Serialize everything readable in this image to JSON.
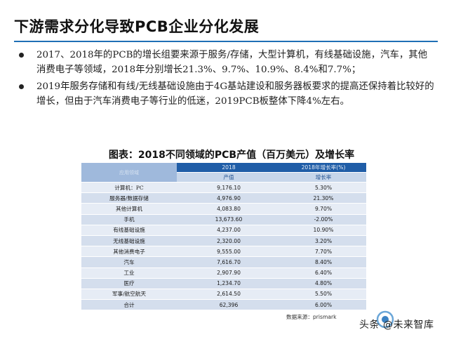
{
  "title": "下游需求分化导致PCB企业分化发展",
  "bullets": [
    "2017、2018年的PCB的增长组要来源于服务/存储，大型计算机，有线基础设施，汽车，其他消费电子等领域，2018年分别增长21.3%、9.7%、10.9%、8.4%和7.7%；",
    "2019年服务存储和有线/无线基础设施由于4G基站建设和服务器板要求的提高还保持着比较好的增长，但由于汽车消费电子等行业的低迷，2019PCB板整体下降4%左右。"
  ],
  "table": {
    "caption": "图表：2018不同领域的PCB产值（百万美元）及增长率",
    "corner_label": "应用领域",
    "year_header": "2018",
    "growth_header": "2018年增长率(%)",
    "col_value": "产值",
    "col_growth": "增长率",
    "rows": [
      {
        "category": "计算机：PC",
        "value": "9,176.10",
        "growth": "5.30%"
      },
      {
        "category": "服务器/数据存储",
        "value": "4,976.90",
        "growth": "21.30%"
      },
      {
        "category": "其他计算机",
        "value": "4,083.80",
        "growth": "9.70%"
      },
      {
        "category": "手机",
        "value": "13,673.60",
        "growth": "-2.00%"
      },
      {
        "category": "有线基础设施",
        "value": "4,237.00",
        "growth": "10.90%"
      },
      {
        "category": "无线基础设施",
        "value": "2,320.00",
        "growth": "3.20%"
      },
      {
        "category": "其他消费电子",
        "value": "9,555.00",
        "growth": "7.70%"
      },
      {
        "category": "汽车",
        "value": "7,616.70",
        "growth": "8.40%"
      },
      {
        "category": "工业",
        "value": "2,907.90",
        "growth": "6.40%"
      },
      {
        "category": "医疗",
        "value": "1,234.70",
        "growth": "4.80%"
      },
      {
        "category": "军事/航空航天",
        "value": "2,614.50",
        "growth": "5.50%"
      },
      {
        "category": "合计",
        "value": "62,396",
        "growth": "6.00%"
      }
    ]
  },
  "source": "数据来源：prismark",
  "watermark": "头条 @未来智库",
  "colors": {
    "accent_rule": "#1f6fb5",
    "table_header": "#1f5da7",
    "table_subheader": "#c7d6ea",
    "row_light": "#e6ecf5",
    "row_dark": "#d4deed"
  }
}
